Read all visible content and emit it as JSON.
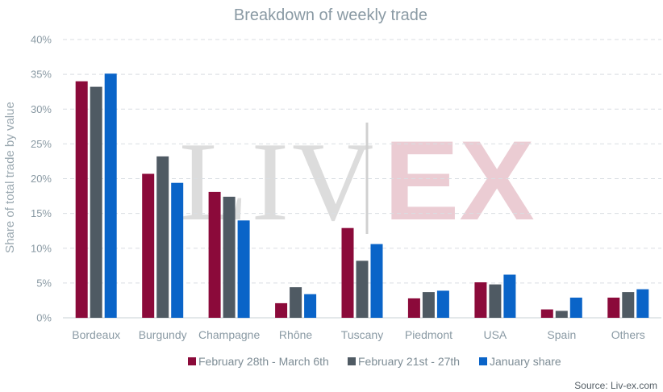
{
  "chart_data": {
    "type": "bar",
    "title": "Breakdown of weekly trade",
    "ylabel": "Share of total trade by value",
    "xlabel": "",
    "ylim": [
      0,
      40
    ],
    "yticks": [
      "0%",
      "5%",
      "10%",
      "15%",
      "20%",
      "25%",
      "30%",
      "35%",
      "40%"
    ],
    "grid": true,
    "legend_position": "bottom",
    "categories": [
      "Bordeaux",
      "Burgundy",
      "Champagne",
      "Rhône",
      "Tuscany",
      "Piedmont",
      "USA",
      "Spain",
      "Others"
    ],
    "series": [
      {
        "name": "February 28th - March 6th",
        "color": "#8b0a3a",
        "values": [
          34.0,
          20.7,
          18.1,
          2.1,
          12.9,
          2.8,
          5.1,
          1.2,
          2.9
        ]
      },
      {
        "name": "February 21st - 27th",
        "color": "#4f5a63",
        "values": [
          33.2,
          23.2,
          17.4,
          4.4,
          8.2,
          3.7,
          4.8,
          1.0,
          3.7
        ]
      },
      {
        "name": "January share",
        "color": "#0a64c8",
        "values": [
          35.1,
          19.4,
          14.0,
          3.4,
          10.6,
          3.9,
          6.2,
          2.9,
          4.1
        ]
      }
    ]
  },
  "watermark": {
    "left": "LIV",
    "right": "EX"
  },
  "source": "Source: Liv-ex.com"
}
